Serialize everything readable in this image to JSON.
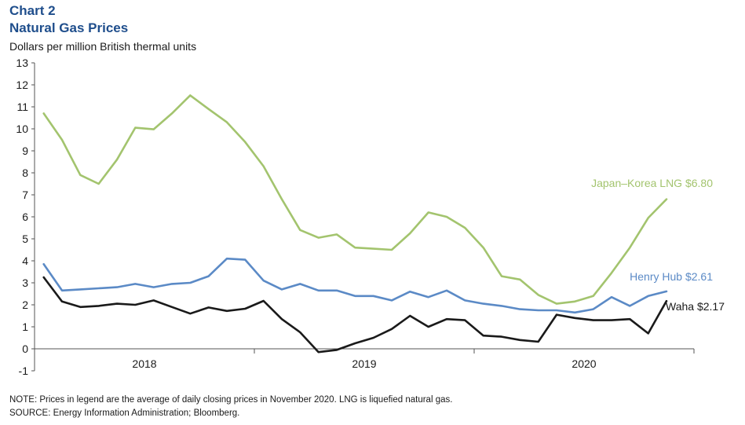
{
  "chart_label": "Chart 2",
  "chart_data": {
    "type": "line",
    "title": "Natural Gas Prices",
    "ylabel": "Dollars per million British thermal units",
    "xlabel": "",
    "ylim": [
      -1,
      13
    ],
    "yticks": [
      -1,
      0,
      1,
      2,
      3,
      4,
      5,
      6,
      7,
      8,
      9,
      10,
      11,
      12,
      13
    ],
    "x_periods": 36,
    "xtick_labels": [
      "2018",
      "2019",
      "2020"
    ],
    "grid": false,
    "series": [
      {
        "name": "Japan–Korea LNG",
        "label": "Japan–Korea LNG $6.80",
        "color": "#a3c46e",
        "values": [
          10.7,
          9.5,
          7.9,
          7.5,
          8.6,
          10.05,
          9.98,
          10.7,
          11.52,
          10.9,
          10.3,
          9.4,
          8.3,
          6.8,
          5.4,
          5.05,
          5.2,
          4.6,
          4.55,
          4.5,
          5.25,
          6.2,
          6.0,
          5.5,
          4.6,
          3.3,
          3.15,
          2.45,
          2.05,
          2.15,
          2.4,
          3.45,
          4.6,
          5.95,
          6.8
        ]
      },
      {
        "name": "Henry Hub",
        "label": "Henry Hub $2.61",
        "color": "#5b8ac6",
        "values": [
          3.85,
          2.65,
          2.7,
          2.75,
          2.8,
          2.95,
          2.8,
          2.95,
          3.0,
          3.3,
          4.1,
          4.05,
          3.1,
          2.7,
          2.95,
          2.65,
          2.65,
          2.4,
          2.4,
          2.2,
          2.6,
          2.35,
          2.65,
          2.2,
          2.05,
          1.95,
          1.8,
          1.75,
          1.75,
          1.65,
          1.8,
          2.35,
          1.95,
          2.4,
          2.61
        ]
      },
      {
        "name": "Waha",
        "label": "Waha $2.17",
        "color": "#1a1a1a",
        "values": [
          3.25,
          2.15,
          1.9,
          1.95,
          2.05,
          2.0,
          2.2,
          1.9,
          1.6,
          1.88,
          1.72,
          1.82,
          2.18,
          1.35,
          0.75,
          -0.15,
          -0.05,
          0.25,
          0.5,
          0.9,
          1.5,
          1.0,
          1.35,
          1.3,
          0.6,
          0.55,
          0.4,
          0.32,
          1.55,
          1.4,
          1.3,
          1.3,
          1.35,
          0.7,
          2.17
        ]
      }
    ]
  },
  "footer": {
    "note": "NOTE: Prices in legend are the average of daily closing prices in November 2020. LNG is liquefied natural gas.",
    "source": "SOURCE: Energy Information Administration; Bloomberg."
  }
}
